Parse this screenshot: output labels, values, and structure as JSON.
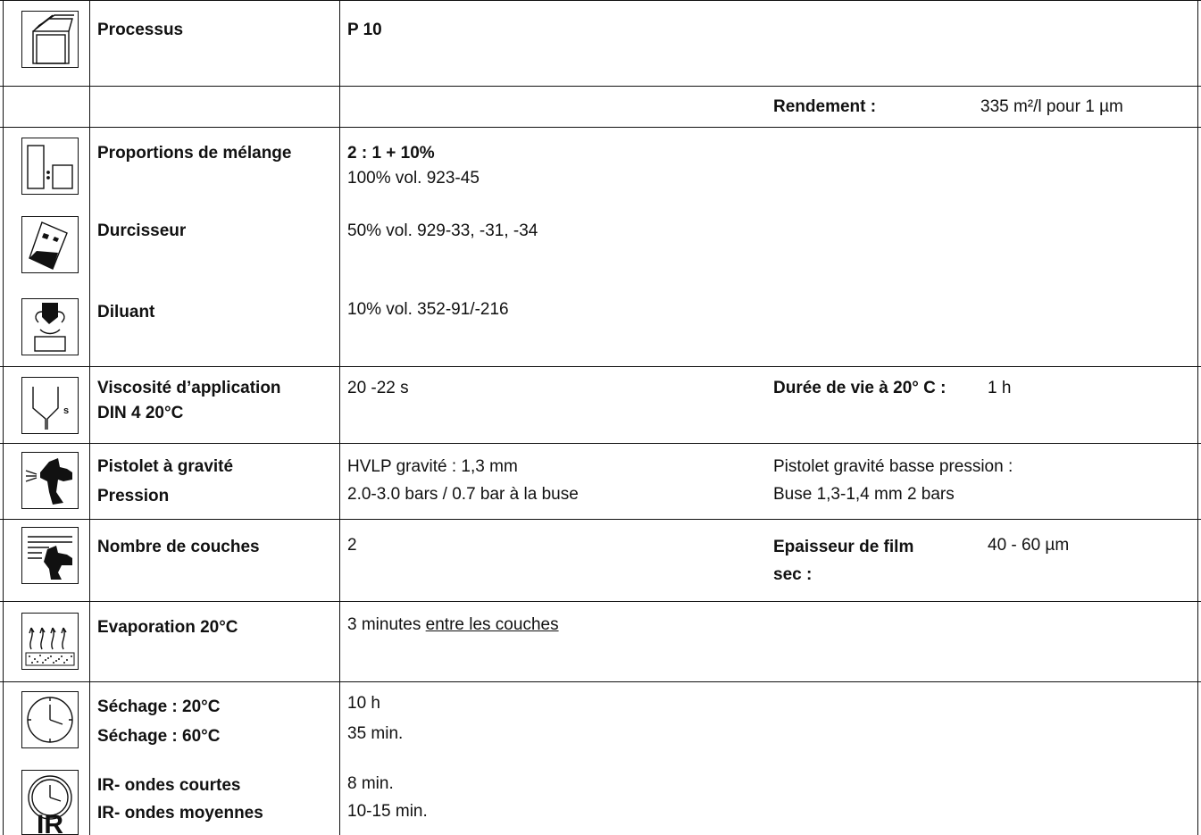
{
  "rows": {
    "processus": {
      "label": "Processus",
      "value": "P 10"
    },
    "rendement": {
      "label": "Rendement :",
      "value": "335 m²/l pour 1 µm"
    },
    "melange": {
      "label": "Proportions de mélange",
      "value1": "2 : 1 + 10%",
      "value2": "100% vol. 923-45"
    },
    "durcisseur": {
      "label": "Durcisseur",
      "value": "50% vol. 929-33, -31, -34"
    },
    "diluant": {
      "label": "Diluant",
      "value": "10% vol. 352-91/-216"
    },
    "viscosite": {
      "label1": "Viscosité d’application",
      "label2": "DIN 4 20°C",
      "value": "20 -22 s",
      "vie_label": "Durée de vie à 20° C :",
      "vie_value": "1 h"
    },
    "pistolet": {
      "label1": "Pistolet à gravité",
      "label2": "Pression",
      "value1": "HVLP gravité : 1,3 mm",
      "value2": "2.0-3.0 bars / 0.7 bar à la buse",
      "alt1": "Pistolet gravité basse pression :",
      "alt2": "Buse 1,3-1,4 mm 2 bars"
    },
    "couches": {
      "label": "Nombre de couches",
      "value": "2",
      "film_label1": "Epaisseur de film",
      "film_label2": "sec :",
      "film_value": "40 - 60 µm"
    },
    "evaporation": {
      "label": "Evaporation 20°C",
      "value_prefix": "3 minutes ",
      "value_underlined": "entre les couches"
    },
    "sechage": {
      "label1": "Séchage : 20°C",
      "label2": "Séchage : 60°C",
      "value1": "10 h",
      "value2": "35 min."
    },
    "ir": {
      "label1": "IR- ondes courtes",
      "label2": "IR- ondes moyennes",
      "value1": "8 min.",
      "value2": "10-15 min."
    }
  },
  "icons": [
    "book-stack-icon",
    "mixing-ratio-icon",
    "hardener-can-icon",
    "thinner-pour-icon",
    "viscosity-cup-icon",
    "spray-gun-icon",
    "spray-coats-icon",
    "evaporation-icon",
    "clock-icon",
    "ir-clock-icon"
  ]
}
